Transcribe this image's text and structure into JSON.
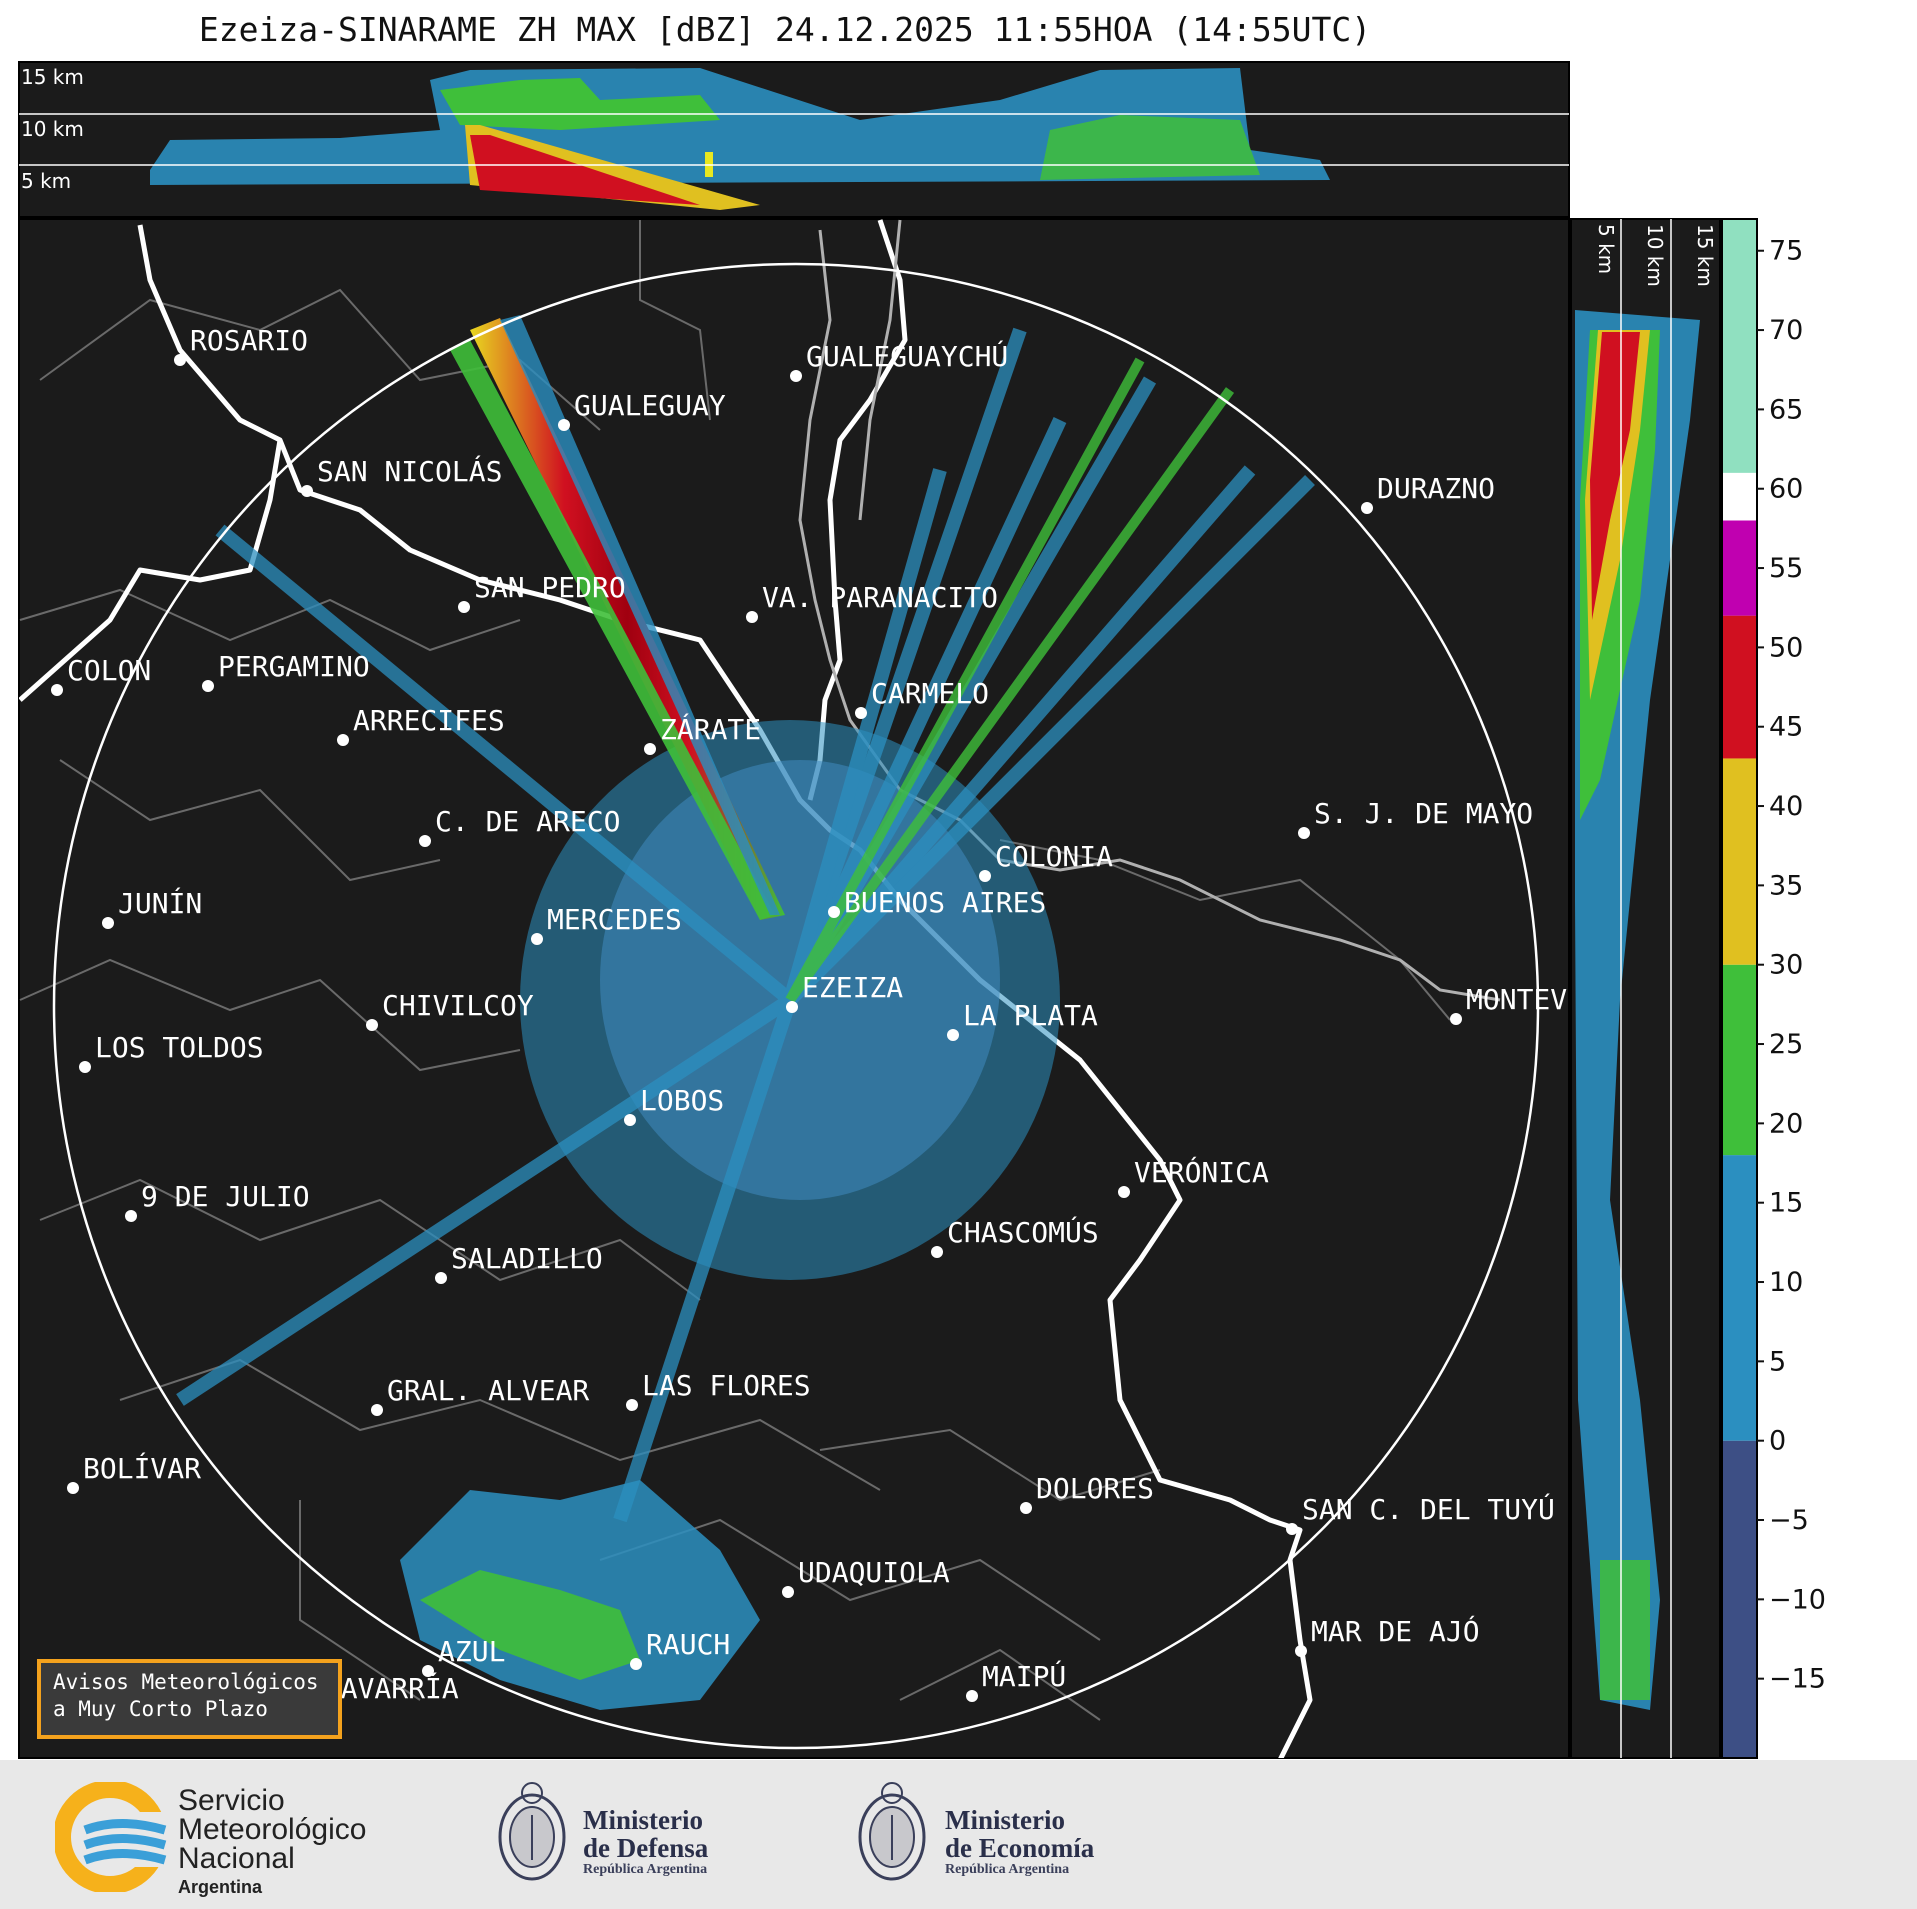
{
  "title": "Ezeiza-SINARAME ZH MAX [dBZ] 24.12.2025 11:55HOA (14:55UTC)",
  "top_panel_labels": [
    "15 km",
    "10 km",
    "5 km"
  ],
  "side_panel_labels": [
    "5 km",
    "10 km",
    "15 km"
  ],
  "cities": [
    {
      "name": "ROSARIO"
    },
    {
      "name": "GUALEGUAYCHÚ"
    },
    {
      "name": "GUALEGUAY"
    },
    {
      "name": "SAN NICOLÁS"
    },
    {
      "name": "DURAZNO"
    },
    {
      "name": "SAN PEDRO"
    },
    {
      "name": "VA. PARANACITO"
    },
    {
      "name": "COLON"
    },
    {
      "name": "PERGAMINO"
    },
    {
      "name": "CARMELO"
    },
    {
      "name": "ARRECIFES"
    },
    {
      "name": "ZÁRATE"
    },
    {
      "name": "S. J. DE MAYO"
    },
    {
      "name": "C. DE ARECO"
    },
    {
      "name": "COLONIA"
    },
    {
      "name": "JUNÍN"
    },
    {
      "name": "BUENOS AIRES"
    },
    {
      "name": "MERCEDES"
    },
    {
      "name": "MONTEVIDEO"
    },
    {
      "name": "EZEIZA"
    },
    {
      "name": "CHIVILCOY"
    },
    {
      "name": "LA PLATA"
    },
    {
      "name": "LOS TOLDOS"
    },
    {
      "name": "LOBOS"
    },
    {
      "name": "VERÓNICA"
    },
    {
      "name": "9 DE JULIO"
    },
    {
      "name": "CHASCOMÚS"
    },
    {
      "name": "SALADILLO"
    },
    {
      "name": "GRAL. ALVEAR"
    },
    {
      "name": "LAS FLORES"
    },
    {
      "name": "BOLÍVAR"
    },
    {
      "name": "DOLORES"
    },
    {
      "name": "SAN C. DEL TUYÚ"
    },
    {
      "name": "UDAQUIOLA"
    },
    {
      "name": "MAR DE AJÓ"
    },
    {
      "name": "RAUCH"
    },
    {
      "name": "AZUL"
    },
    {
      "name": "OLAVARRÍA"
    },
    {
      "name": "MAIPÚ"
    }
  ],
  "colorbar": {
    "ticks": [
      "75",
      "70",
      "65",
      "60",
      "55",
      "50",
      "45",
      "40",
      "35",
      "30",
      "25",
      "20",
      "15",
      "10",
      "5",
      "0",
      "−5",
      "−10",
      "−15"
    ],
    "range": [
      -20,
      77
    ],
    "stops": [
      {
        "from": -20,
        "to": 0,
        "color": "#3d4f85"
      },
      {
        "from": 0,
        "to": 18,
        "color": "#2b8fc0"
      },
      {
        "from": 18,
        "to": 30,
        "color": "#3fbf3a"
      },
      {
        "from": 30,
        "to": 43,
        "color": "#e0c020"
      },
      {
        "from": 43,
        "to": 52,
        "color": "#d01020"
      },
      {
        "from": 52,
        "to": 58,
        "color": "#c000b0"
      },
      {
        "from": 58,
        "to": 61,
        "color": "#ffffff"
      },
      {
        "from": 61,
        "to": 77,
        "color": "#90e0c0"
      }
    ]
  },
  "avisos": {
    "line1": "Avisos Meteorológicos",
    "line2": "a Muy Corto Plazo"
  },
  "footer": {
    "smn": {
      "line1": "Servicio",
      "line2": "Meteorológico",
      "line3": "Nacional",
      "line4": "Argentina"
    },
    "defensa": {
      "line1": "Ministerio",
      "line2": "de Defensa",
      "line3": "República Argentina"
    },
    "economia": {
      "line1": "Ministerio",
      "line2": "de Economía",
      "line3": "República Argentina"
    }
  },
  "colors": {
    "background": "#1b1b1b",
    "echo_light": "#2b8fc0",
    "echo_strong": "#d01020",
    "accent": "#f4a21d"
  }
}
